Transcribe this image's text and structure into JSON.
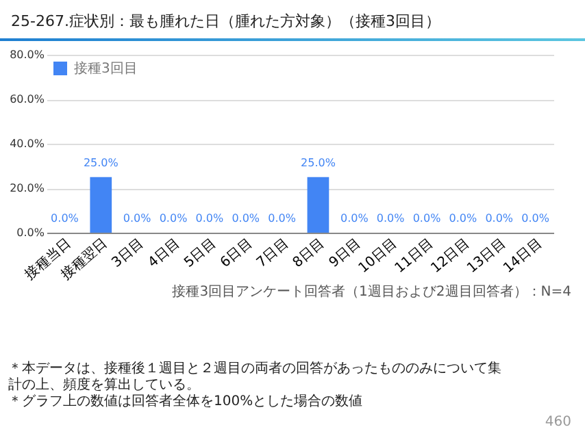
{
  "chart_data": {
    "type": "bar",
    "title": "25-267.症状別：最も腫れた日（腫れた方対象）（接種3回目）",
    "categories": [
      "接種当日",
      "接種翌日",
      "3日目",
      "4日目",
      "5日目",
      "6日目",
      "7日目",
      "8日目",
      "9日目",
      "10日目",
      "11日目",
      "12日目",
      "13日目",
      "14日目"
    ],
    "series": [
      {
        "name": "接種3回目",
        "color": "#4285f4",
        "values": [
          0,
          25,
          0,
          0,
          0,
          0,
          0,
          25,
          0,
          0,
          0,
          0,
          0,
          0
        ],
        "value_labels": [
          "0.0%",
          "25.0%",
          "0.0%",
          "0.0%",
          "0.0%",
          "0.0%",
          "0.0%",
          "25.0%",
          "0.0%",
          "0.0%",
          "0.0%",
          "0.0%",
          "0.0%",
          "0.0%"
        ]
      }
    ],
    "ylim": [
      0,
      80
    ],
    "yticks": [
      {
        "value": 0,
        "label": "0.0%"
      },
      {
        "value": 20,
        "label": "20.0%"
      },
      {
        "value": 40,
        "label": "40.0%"
      },
      {
        "value": 60,
        "label": "60.0%"
      },
      {
        "value": 80,
        "label": "80.0%"
      }
    ],
    "grid": "y",
    "legend": "top left",
    "annotations": [
      "接種3回目アンケート回答者（1週目および2週目回答者）：N=4",
      "＊本データは、接種後１週目と２週目の両者の回答があったもののみについて集計の上、頻度を算出している。",
      "＊グラフ上の数値は回答者全体を100%とした場合の数値",
      "460"
    ]
  }
}
